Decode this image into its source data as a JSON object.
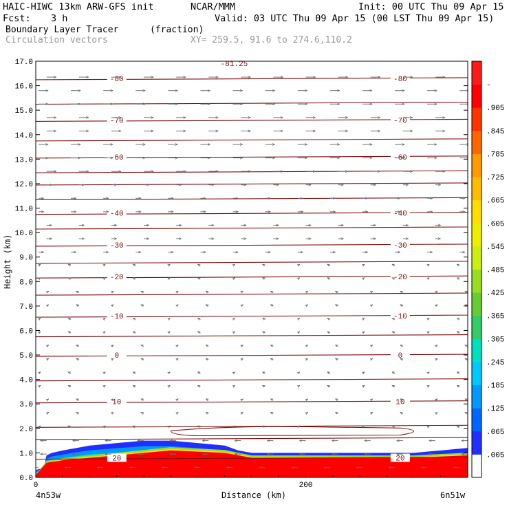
{
  "header": {
    "model": "HAIC-HIWC 13km ARW-GFS init",
    "org": "NCAR/MMM",
    "init": "Init: 00 UTC Thu 09 Apr 15",
    "fcst_label": "Fcst:",
    "fcst_value": "3 h",
    "valid": "Valid: 03 UTC Thu 09 Apr 15 (00 LST Thu 09 Apr 15)",
    "field": "Boundary Layer Tracer",
    "field_units": "(fraction)",
    "overlay": "Circulation vectors",
    "xy": "XY= 259.5, 91.6 to 274.6,110.2"
  },
  "axes": {
    "ylabel": "Height (km)",
    "xlabel": "Distance (km)",
    "x_left_label": "4n53w",
    "x_right_label": "6n51w"
  },
  "chart_data": {
    "type": "heatmap",
    "title": "Boundary Layer Tracer",
    "units": "(fraction)",
    "xlabel": "Distance (km)",
    "ylabel": "Height (km)",
    "xlim": [
      0,
      320
    ],
    "ylim": [
      0,
      17
    ],
    "x_ticks": [
      0,
      200
    ],
    "x_tick_labels": [
      "0",
      "200"
    ],
    "y_ticks": [
      0,
      1,
      2,
      3,
      4,
      5,
      6,
      7,
      8,
      9,
      10,
      11,
      12,
      13,
      14,
      15,
      16,
      17
    ],
    "y_tick_labels": [
      "0.0",
      "1.0",
      "2.0",
      "3.0",
      "4.0",
      "5.0",
      "6.0",
      "7.0",
      "8.0",
      "9.0",
      "10.0",
      "11.0",
      "12.0",
      "13.0",
      "14.0",
      "15.0",
      "16.0",
      "17.0"
    ],
    "colorbar": {
      "labels": [
        ".005",
        ".065",
        ".125",
        ".185",
        ".245",
        ".305",
        ".365",
        ".425",
        ".485",
        ".545",
        ".605",
        ".665",
        ".725",
        ".785",
        ".845",
        ".905",
        "-"
      ],
      "colors": [
        "#ffffff",
        "#1f2fff",
        "#0066ff",
        "#0099ff",
        "#00c8ff",
        "#00e0c0",
        "#33cc66",
        "#66cc33",
        "#99dd22",
        "#ccee11",
        "#eeee00",
        "#ffdd00",
        "#ffbb00",
        "#ff9900",
        "#ff6600",
        "#ff3300",
        "#ff0000",
        "#ff1a1a"
      ]
    },
    "tracer_top_km": [
      [
        0,
        0.3
      ],
      [
        6,
        0.4
      ],
      [
        8,
        0.9
      ],
      [
        12,
        1.0
      ],
      [
        20,
        1.1
      ],
      [
        40,
        1.3
      ],
      [
        60,
        1.4
      ],
      [
        80,
        1.5
      ],
      [
        100,
        1.5
      ],
      [
        120,
        1.4
      ],
      [
        140,
        1.3
      ],
      [
        150,
        1.1
      ],
      [
        160,
        1.0
      ],
      [
        200,
        1.0
      ],
      [
        240,
        1.0
      ],
      [
        280,
        1.0
      ],
      [
        300,
        1.1
      ],
      [
        320,
        1.2
      ]
    ],
    "tracer_core_top_km": [
      [
        0,
        0.1
      ],
      [
        8,
        0.6
      ],
      [
        20,
        0.7
      ],
      [
        40,
        0.8
      ],
      [
        60,
        0.9
      ],
      [
        80,
        1.0
      ],
      [
        100,
        1.1
      ],
      [
        140,
        1.0
      ],
      [
        160,
        0.8
      ],
      [
        200,
        0.8
      ],
      [
        280,
        0.8
      ],
      [
        320,
        0.9
      ]
    ],
    "temperature_contours": [
      {
        "label": "-80",
        "km": 16.3
      },
      {
        "label": "-70",
        "km": 14.6
      },
      {
        "label": "-60",
        "km": 13.1
      },
      {
        "label": "-40",
        "km": 10.8
      },
      {
        "label": "-30",
        "km": 9.5
      },
      {
        "label": "-20",
        "km": 8.2
      },
      {
        "label": "-10",
        "km": 6.6
      },
      {
        "label": "0",
        "km": 5.0
      },
      {
        "label": "10",
        "km": 3.1
      },
      {
        "label": "20",
        "km": 0.8
      }
    ],
    "unlabeled_contour_km": [
      15.3,
      13.8,
      12.5,
      12.0,
      11.4,
      10.2,
      8.8,
      7.5,
      5.8,
      4.0,
      2.1,
      1.6
    ],
    "top_contour_label": "-81.25",
    "closed_contour": {
      "x_from": 100,
      "x_to": 290,
      "km_low": 1.7,
      "km_high": 2.1
    }
  }
}
